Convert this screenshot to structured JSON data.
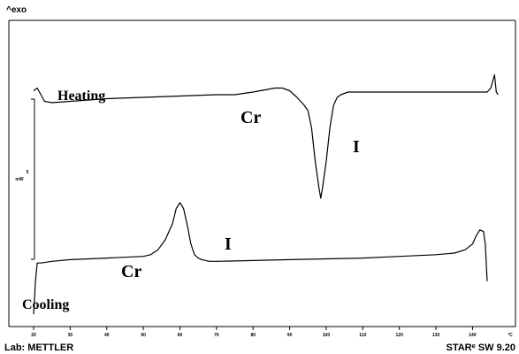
{
  "chart_data": {
    "type": "line",
    "y_axis_label": "^exo",
    "scale_bar": {
      "value": "5",
      "unit": "mW"
    },
    "x_ticks": [
      20,
      30,
      40,
      50,
      60,
      70,
      80,
      90,
      100,
      110,
      120,
      130,
      140
    ],
    "x_unit": "°C",
    "xlim": [
      20,
      148
    ],
    "grid": false,
    "series": [
      {
        "name": "Heating",
        "points": [
          [
            20,
            83
          ],
          [
            21,
            85
          ],
          [
            22,
            80
          ],
          [
            23,
            75
          ],
          [
            25,
            74
          ],
          [
            30,
            75
          ],
          [
            40,
            77
          ],
          [
            50,
            78
          ],
          [
            60,
            79
          ],
          [
            70,
            80
          ],
          [
            75,
            80
          ],
          [
            80,
            82
          ],
          [
            82,
            83
          ],
          [
            84,
            84
          ],
          [
            86,
            85
          ],
          [
            88,
            85
          ],
          [
            90,
            83
          ],
          [
            92,
            78
          ],
          [
            94,
            72
          ],
          [
            95,
            68
          ],
          [
            96,
            55
          ],
          [
            97,
            30
          ],
          [
            98,
            10
          ],
          [
            98.5,
            2
          ],
          [
            99,
            10
          ],
          [
            100,
            30
          ],
          [
            101,
            55
          ],
          [
            102,
            72
          ],
          [
            103,
            78
          ],
          [
            104,
            80
          ],
          [
            106,
            82
          ],
          [
            110,
            82
          ],
          [
            120,
            82
          ],
          [
            130,
            82
          ],
          [
            140,
            82
          ],
          [
            144,
            82
          ],
          [
            145,
            85
          ],
          [
            146,
            95
          ],
          [
            146.5,
            82
          ],
          [
            147,
            80
          ]
        ]
      },
      {
        "name": "Cooling",
        "points": [
          [
            20,
            0
          ],
          [
            20.5,
            40
          ],
          [
            21,
            62
          ],
          [
            22,
            62
          ],
          [
            25,
            64
          ],
          [
            30,
            66
          ],
          [
            40,
            68
          ],
          [
            50,
            70
          ],
          [
            52,
            72
          ],
          [
            54,
            78
          ],
          [
            56,
            90
          ],
          [
            58,
            110
          ],
          [
            59,
            128
          ],
          [
            60,
            135
          ],
          [
            61,
            128
          ],
          [
            62,
            108
          ],
          [
            63,
            85
          ],
          [
            64,
            72
          ],
          [
            65,
            68
          ],
          [
            66,
            66
          ],
          [
            68,
            64
          ],
          [
            70,
            64
          ],
          [
            80,
            65
          ],
          [
            90,
            66
          ],
          [
            100,
            67
          ],
          [
            110,
            68
          ],
          [
            120,
            70
          ],
          [
            130,
            72
          ],
          [
            135,
            74
          ],
          [
            138,
            78
          ],
          [
            140,
            85
          ],
          [
            141,
            95
          ],
          [
            142,
            102
          ],
          [
            143,
            100
          ],
          [
            143.5,
            85
          ],
          [
            144,
            40
          ]
        ]
      }
    ],
    "annotations": [
      {
        "text": "Heating",
        "series": "Heating"
      },
      {
        "text": "Cr",
        "series": "Heating"
      },
      {
        "text": "I",
        "series": "Heating"
      },
      {
        "text": "Cr",
        "series": "Cooling"
      },
      {
        "text": "I",
        "series": "Cooling"
      },
      {
        "text": "Cooling",
        "series": "Cooling"
      }
    ]
  },
  "footer": {
    "lab": "Lab: METTLER",
    "software": "STARᵉ SW 9.20"
  }
}
